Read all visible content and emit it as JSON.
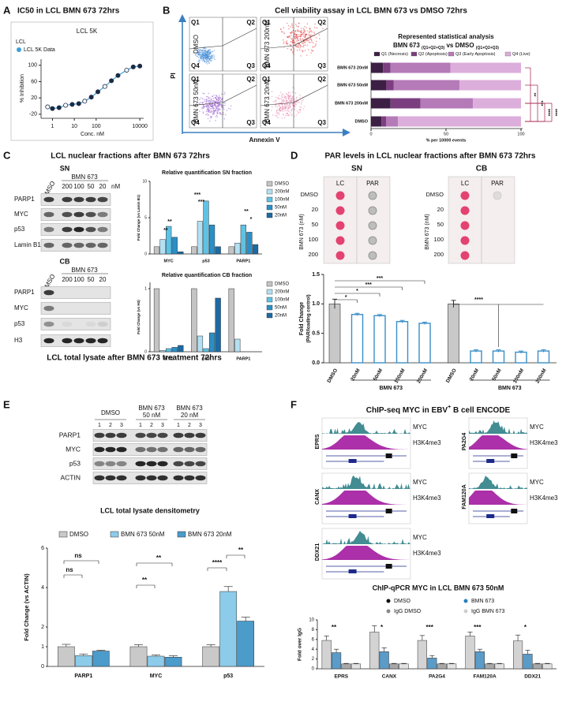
{
  "a": {
    "letter": "A",
    "title": "IC50 in LCL BMN 673 72hrs",
    "plot_title": "LCL 5K",
    "legend_title": "LCL",
    "series_name": "LCL 5K Data",
    "color": "#3aa0d8",
    "point_color": "#1c2a44",
    "ylabel": "% Inhibition",
    "xlabel": "Conc. nM",
    "x": [
      0.6,
      1,
      2,
      4,
      8,
      16,
      30,
      60,
      120,
      250,
      500,
      1000,
      2500,
      5000,
      10000
    ],
    "y": [
      -2,
      -6,
      -4,
      2,
      4,
      6,
      12,
      22,
      35,
      48,
      62,
      75,
      88,
      96,
      98
    ],
    "xlim": [
      0.3,
      15000
    ],
    "xticks": [
      1,
      10,
      100,
      10000
    ],
    "log_x": true,
    "ylim": [
      -30,
      115
    ],
    "yticks": [
      -20,
      20,
      60,
      100
    ]
  },
  "b": {
    "letter": "B",
    "title": "Cell viability assay in LCL BMN 673 vs DMSO 72hrs",
    "y_axis": "PI",
    "x_axis": "Annexin V",
    "quadrants": [
      "Q1",
      "Q2",
      "Q3",
      "Q4"
    ],
    "plots": [
      {
        "label": "DMSO",
        "color": "#4a90d9"
      },
      {
        "label": "BMN 673 200nM",
        "color": "#e8474a"
      },
      {
        "label": "BMN 673 50nM",
        "color": "#9b5fd0"
      },
      {
        "label": "BMN 673 20nM",
        "color": "#e58bb0"
      }
    ],
    "stats": {
      "title": "Represented statistical analysis",
      "subtitle": [
        "BMN 673 ",
        "(Q1+Q2+Q3)",
        " vs DMSO ",
        "(Q1+Q2+Q3)"
      ],
      "categories": [
        "BMN 673 20nM",
        "BMN 673 50nM",
        "BMN 673 200nM",
        "DMSO"
      ],
      "series": [
        {
          "name": "Q1 (Necrosis)",
          "color": "#3d1f45",
          "values": [
            8,
            10,
            13,
            7
          ]
        },
        {
          "name": "Q2 (Apoptosis)",
          "color": "#7b3f80",
          "values": [
            5,
            5,
            20,
            3
          ]
        },
        {
          "name": "Q3 (Early Apoptosis)",
          "color": "#b57ab8",
          "values": [
            40,
            44,
            35,
            8
          ]
        },
        {
          "name": "Q4 (Live)",
          "color": "#dcaedb",
          "values": [
            47,
            41,
            32,
            82
          ]
        }
      ],
      "xlim": [
        0,
        100
      ],
      "xticks": [
        0,
        50,
        100
      ],
      "xlabel": "% per 10000 events",
      "annotations": [
        "**",
        "***",
        "****",
        "****"
      ]
    }
  },
  "c": {
    "letter": "C",
    "title": "LCL nuclear fractions after BMN 673 72hrs",
    "sn_blot": {
      "label": "SN",
      "treatment": "BMN 673",
      "lanes": [
        "DMSO",
        "200",
        "100",
        "50",
        "20"
      ],
      "unit": "nM",
      "rows": [
        "PARP1",
        "MYC",
        "p53",
        "Lamin B1"
      ]
    },
    "cb_blot": {
      "label": "CB",
      "treatment": "BMN 673",
      "lanes": [
        "DMSO",
        "200",
        "100",
        "50",
        "20"
      ],
      "rows": [
        "PARP1",
        "MYC",
        "p53",
        "H3"
      ]
    },
    "sn_chart": {
      "title": "Relative quantification SN fraction",
      "ylabel": "Fold Change (vs Lamin B1)",
      "categories": [
        "MYC",
        "p53",
        "PARP1"
      ],
      "series": [
        {
          "name": "DMSO",
          "color": "#c4c4c4",
          "values": [
            1,
            1,
            1
          ]
        },
        {
          "name": "200nM",
          "color": "#b3e0f2",
          "values": [
            2,
            4.5,
            1.5
          ]
        },
        {
          "name": "100nM",
          "color": "#5ec2e4",
          "values": [
            3.8,
            7.3,
            4
          ]
        },
        {
          "name": "50nM",
          "color": "#2b8fc7",
          "values": [
            2.3,
            4,
            3
          ]
        },
        {
          "name": "20nM",
          "color": "#1b6aa3",
          "values": [
            0.3,
            1,
            1.3
          ]
        }
      ],
      "ylim": [
        0,
        10
      ],
      "yticks": [
        0,
        5,
        10
      ],
      "annotations": [
        "**",
        "**",
        "***",
        "***",
        "**",
        "*"
      ]
    },
    "cb_chart": {
      "title": "Relative quantification CB fraction",
      "ylabel": "Fold Change (vs H3)",
      "categories": [
        "MYC",
        "p53",
        "PARP1"
      ],
      "series": [
        {
          "name": "DMSO",
          "color": "#c4c4c4",
          "values": [
            1,
            1,
            1
          ]
        },
        {
          "name": "200nM",
          "color": "#b3e0f2",
          "values": [
            0.02,
            0.25,
            0.2
          ]
        },
        {
          "name": "100nM",
          "color": "#5ec2e4",
          "values": [
            0.05,
            0.05,
            0
          ]
        },
        {
          "name": "50nM",
          "color": "#2b8fc7",
          "values": [
            0.07,
            0.3,
            0
          ]
        },
        {
          "name": "20nM",
          "color": "#1b6aa3",
          "values": [
            0.1,
            0.85,
            0
          ]
        }
      ],
      "ylim": [
        0,
        1.1
      ],
      "yticks": [
        0,
        1
      ]
    }
  },
  "d": {
    "letter": "D",
    "title": "PAR levels in LCL nuclear fractions after BMN 673 72hrs",
    "sn_label": "SN",
    "cb_label": "CB",
    "columns": [
      "LC",
      "PAR"
    ],
    "rows": [
      "DMSO",
      20,
      50,
      100,
      200
    ],
    "row_title": "BMN 673 (nM)",
    "dot_color": "#e0235a",
    "chart": {
      "ylabel": [
        "Fold Change",
        "(PAR/loading control)"
      ],
      "categories": [
        "DMSO",
        "20nM",
        "50nM",
        "100nM",
        "200nM",
        "DMSO",
        "20nM",
        "50nM",
        "100nM",
        "200nM"
      ],
      "values": [
        1,
        0.82,
        0.8,
        0.7,
        0.67,
        1,
        0.2,
        0.2,
        0.18,
        0.2
      ],
      "errors": [
        0.08,
        0.02,
        0.02,
        0.02,
        0.02,
        0.06,
        0.02,
        0.02,
        0.02,
        0.02
      ],
      "ylim": [
        0,
        1.5
      ],
      "yticks": [
        {
          "value": 0,
          "label": "0.0"
        },
        {
          "value": 0.5,
          "label": "0.5"
        },
        {
          "value": 1,
          "label": "1.0"
        },
        {
          "value": 1.5,
          "label": "1.5"
        }
      ],
      "groups": [
        "BMN 673",
        "BMN 673"
      ],
      "color": "#3a8fc8",
      "control_color": "#c8c8c8",
      "annotations": [
        "***",
        "***",
        "*",
        "*",
        "****"
      ]
    }
  },
  "e": {
    "letter": "E",
    "title": "LCL total lysate after BMN 673 treatment 72hrs",
    "blot": {
      "groups": [
        "DMSO",
        "BMN 673",
        "BMN 673"
      ],
      "doses": [
        "50 nM",
        "20 nM"
      ],
      "lanes": [
        1,
        2,
        3
      ],
      "rows": [
        "PARP1",
        "MYC",
        "p53",
        "ACTIN"
      ]
    },
    "chart": {
      "title": "LCL total lysate densitometry",
      "ylabel": "Fold Change (vs ACTIN)",
      "categories": [
        "PARP1",
        "MYC",
        "p53"
      ],
      "series": [
        {
          "name": "DMSO",
          "color": "#c9c9c9",
          "values": [
            1,
            1,
            1
          ],
          "errors": [
            0.12,
            0.1,
            0.1
          ]
        },
        {
          "name": "BMN 673 50nM",
          "color": "#8ccbe9",
          "values": [
            0.55,
            0.52,
            3.8
          ],
          "errors": [
            0.08,
            0.06,
            0.25
          ]
        },
        {
          "name": "BMN 673 20nM",
          "color": "#4b9bcb",
          "values": [
            0.78,
            0.47,
            2.3
          ],
          "errors": [
            0.04,
            0.07,
            0.2
          ]
        }
      ],
      "ylim": [
        0,
        6
      ],
      "yticks": [
        0,
        1,
        2,
        4,
        6
      ],
      "annotations": [
        "ns",
        "ns",
        "**",
        "**",
        "****",
        "**"
      ]
    }
  },
  "f": {
    "letter": "F",
    "title": [
      "ChIP-seq  MYC in EBV",
      "+",
      " B cell ENCODE"
    ],
    "tracks": [
      "MYC",
      "H3K4me3"
    ],
    "genes": [
      "EPRS",
      "PA2G4",
      "CANX",
      "FAM120A",
      "DDX21"
    ],
    "track_colors": [
      "#2e7f86",
      "#a21aa0"
    ],
    "chart": {
      "title": "ChIP-qPCR MYC in LCL BMN 673 50nM",
      "ylabel": "Fold over IgG",
      "categories": [
        "EPRS",
        "CANX",
        "PA2G4",
        "FAM120A",
        "DDX21"
      ],
      "series": [
        {
          "name": "DMSO",
          "color": "#d3d3d3",
          "values": [
            5.8,
            7.5,
            5.8,
            6.7,
            5.7
          ],
          "errors": [
            0.9,
            1.3,
            1,
            0.8,
            1.2
          ]
        },
        {
          "name": "BMN 673",
          "color": "#5b9bc8",
          "values": [
            3.3,
            3.5,
            2.2,
            3.5,
            3
          ],
          "errors": [
            0.7,
            0.8,
            0.5,
            0.5,
            0.8
          ]
        },
        {
          "name": "IgG DMSO",
          "color": "#a8a8a8",
          "values": [
            1,
            1,
            1,
            1,
            1
          ],
          "errors": [
            0.1,
            0.1,
            0.1,
            0.1,
            0.1
          ]
        },
        {
          "name": "IgG BMN 673",
          "color": "#e2e2e2",
          "values": [
            1,
            1,
            1,
            1,
            1
          ],
          "errors": [
            0.1,
            0.1,
            0.1,
            0.1,
            0.1
          ]
        }
      ],
      "ylim": [
        0,
        10
      ],
      "yticks": [
        0,
        2,
        4,
        6,
        8,
        10
      ],
      "annotations": [
        "**",
        "*",
        "***",
        "***",
        "*"
      ]
    }
  }
}
